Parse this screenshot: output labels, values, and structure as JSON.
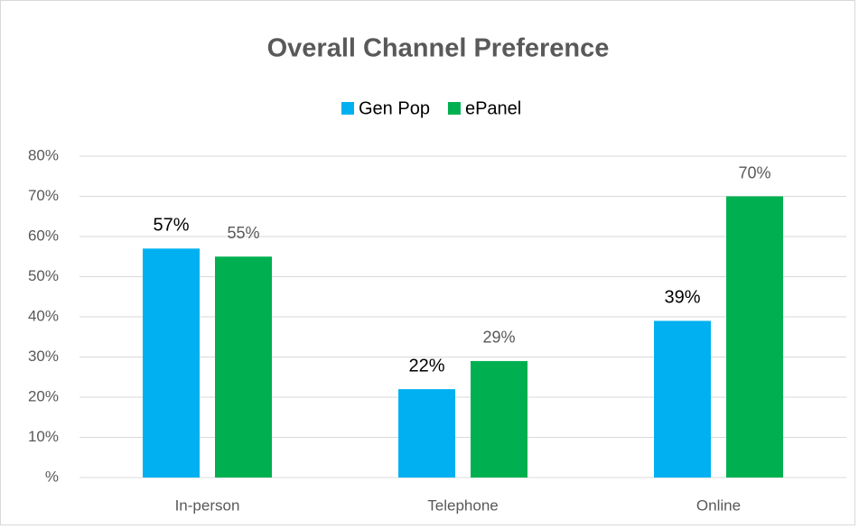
{
  "chart_data": {
    "type": "bar",
    "title": "Overall Channel Preference",
    "categories": [
      "In-person",
      "Telephone",
      "Online"
    ],
    "series": [
      {
        "name": "Gen Pop",
        "color": "#00b0f0",
        "values": [
          57,
          22,
          39
        ],
        "value_labels": [
          "57%",
          "22%",
          "39%"
        ]
      },
      {
        "name": "ePanel",
        "color": "#00b050",
        "values": [
          55,
          29,
          70
        ],
        "value_labels": [
          "55%",
          "29%",
          "70%"
        ]
      }
    ],
    "ylim": [
      0,
      80
    ],
    "yticks": [
      {
        "value": 0,
        "label": "%"
      },
      {
        "value": 10,
        "label": "10%"
      },
      {
        "value": 20,
        "label": "20%"
      },
      {
        "value": 30,
        "label": "30%"
      },
      {
        "value": 40,
        "label": "40%"
      },
      {
        "value": 50,
        "label": "50%"
      },
      {
        "value": 60,
        "label": "60%"
      },
      {
        "value": 70,
        "label": "70%"
      },
      {
        "value": 80,
        "label": "80%"
      }
    ],
    "grid": true,
    "legend": "top"
  }
}
